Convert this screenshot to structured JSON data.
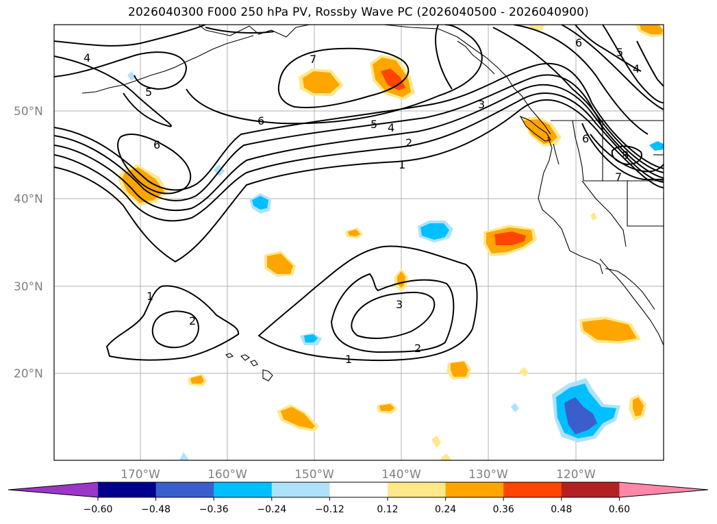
{
  "title": "2026040300 F000 250 hPa PV, Rossby Wave PC (2026040500 - 2026040900)",
  "lat_labels": [
    "50°N",
    "40°N",
    "30°N",
    "20°N"
  ],
  "lon_labels": [
    "170°W",
    "160°W",
    "150°W",
    "140°W",
    "130°W",
    "120°W"
  ],
  "colorbar": {
    "ticks": [
      "−0.60",
      "−0.48",
      "−0.36",
      "−0.24",
      "−0.12",
      "0.12",
      "0.24",
      "0.36",
      "0.48",
      "0.60"
    ],
    "colors": [
      "#9a36c8",
      "#00008b",
      "#3a5fcd",
      "#00bfff",
      "#aee2fa",
      "#ffffff",
      "#ffe88a",
      "#ffa500",
      "#ff4500",
      "#b22222",
      "#ff88aa"
    ]
  },
  "contour_labels": [
    "4",
    "5",
    "7",
    "6",
    "6",
    "5",
    "4",
    "3",
    "2",
    "1",
    "6",
    "5",
    "4",
    "6",
    "8",
    "7",
    "1",
    "2",
    "3",
    "2",
    "1"
  ]
}
